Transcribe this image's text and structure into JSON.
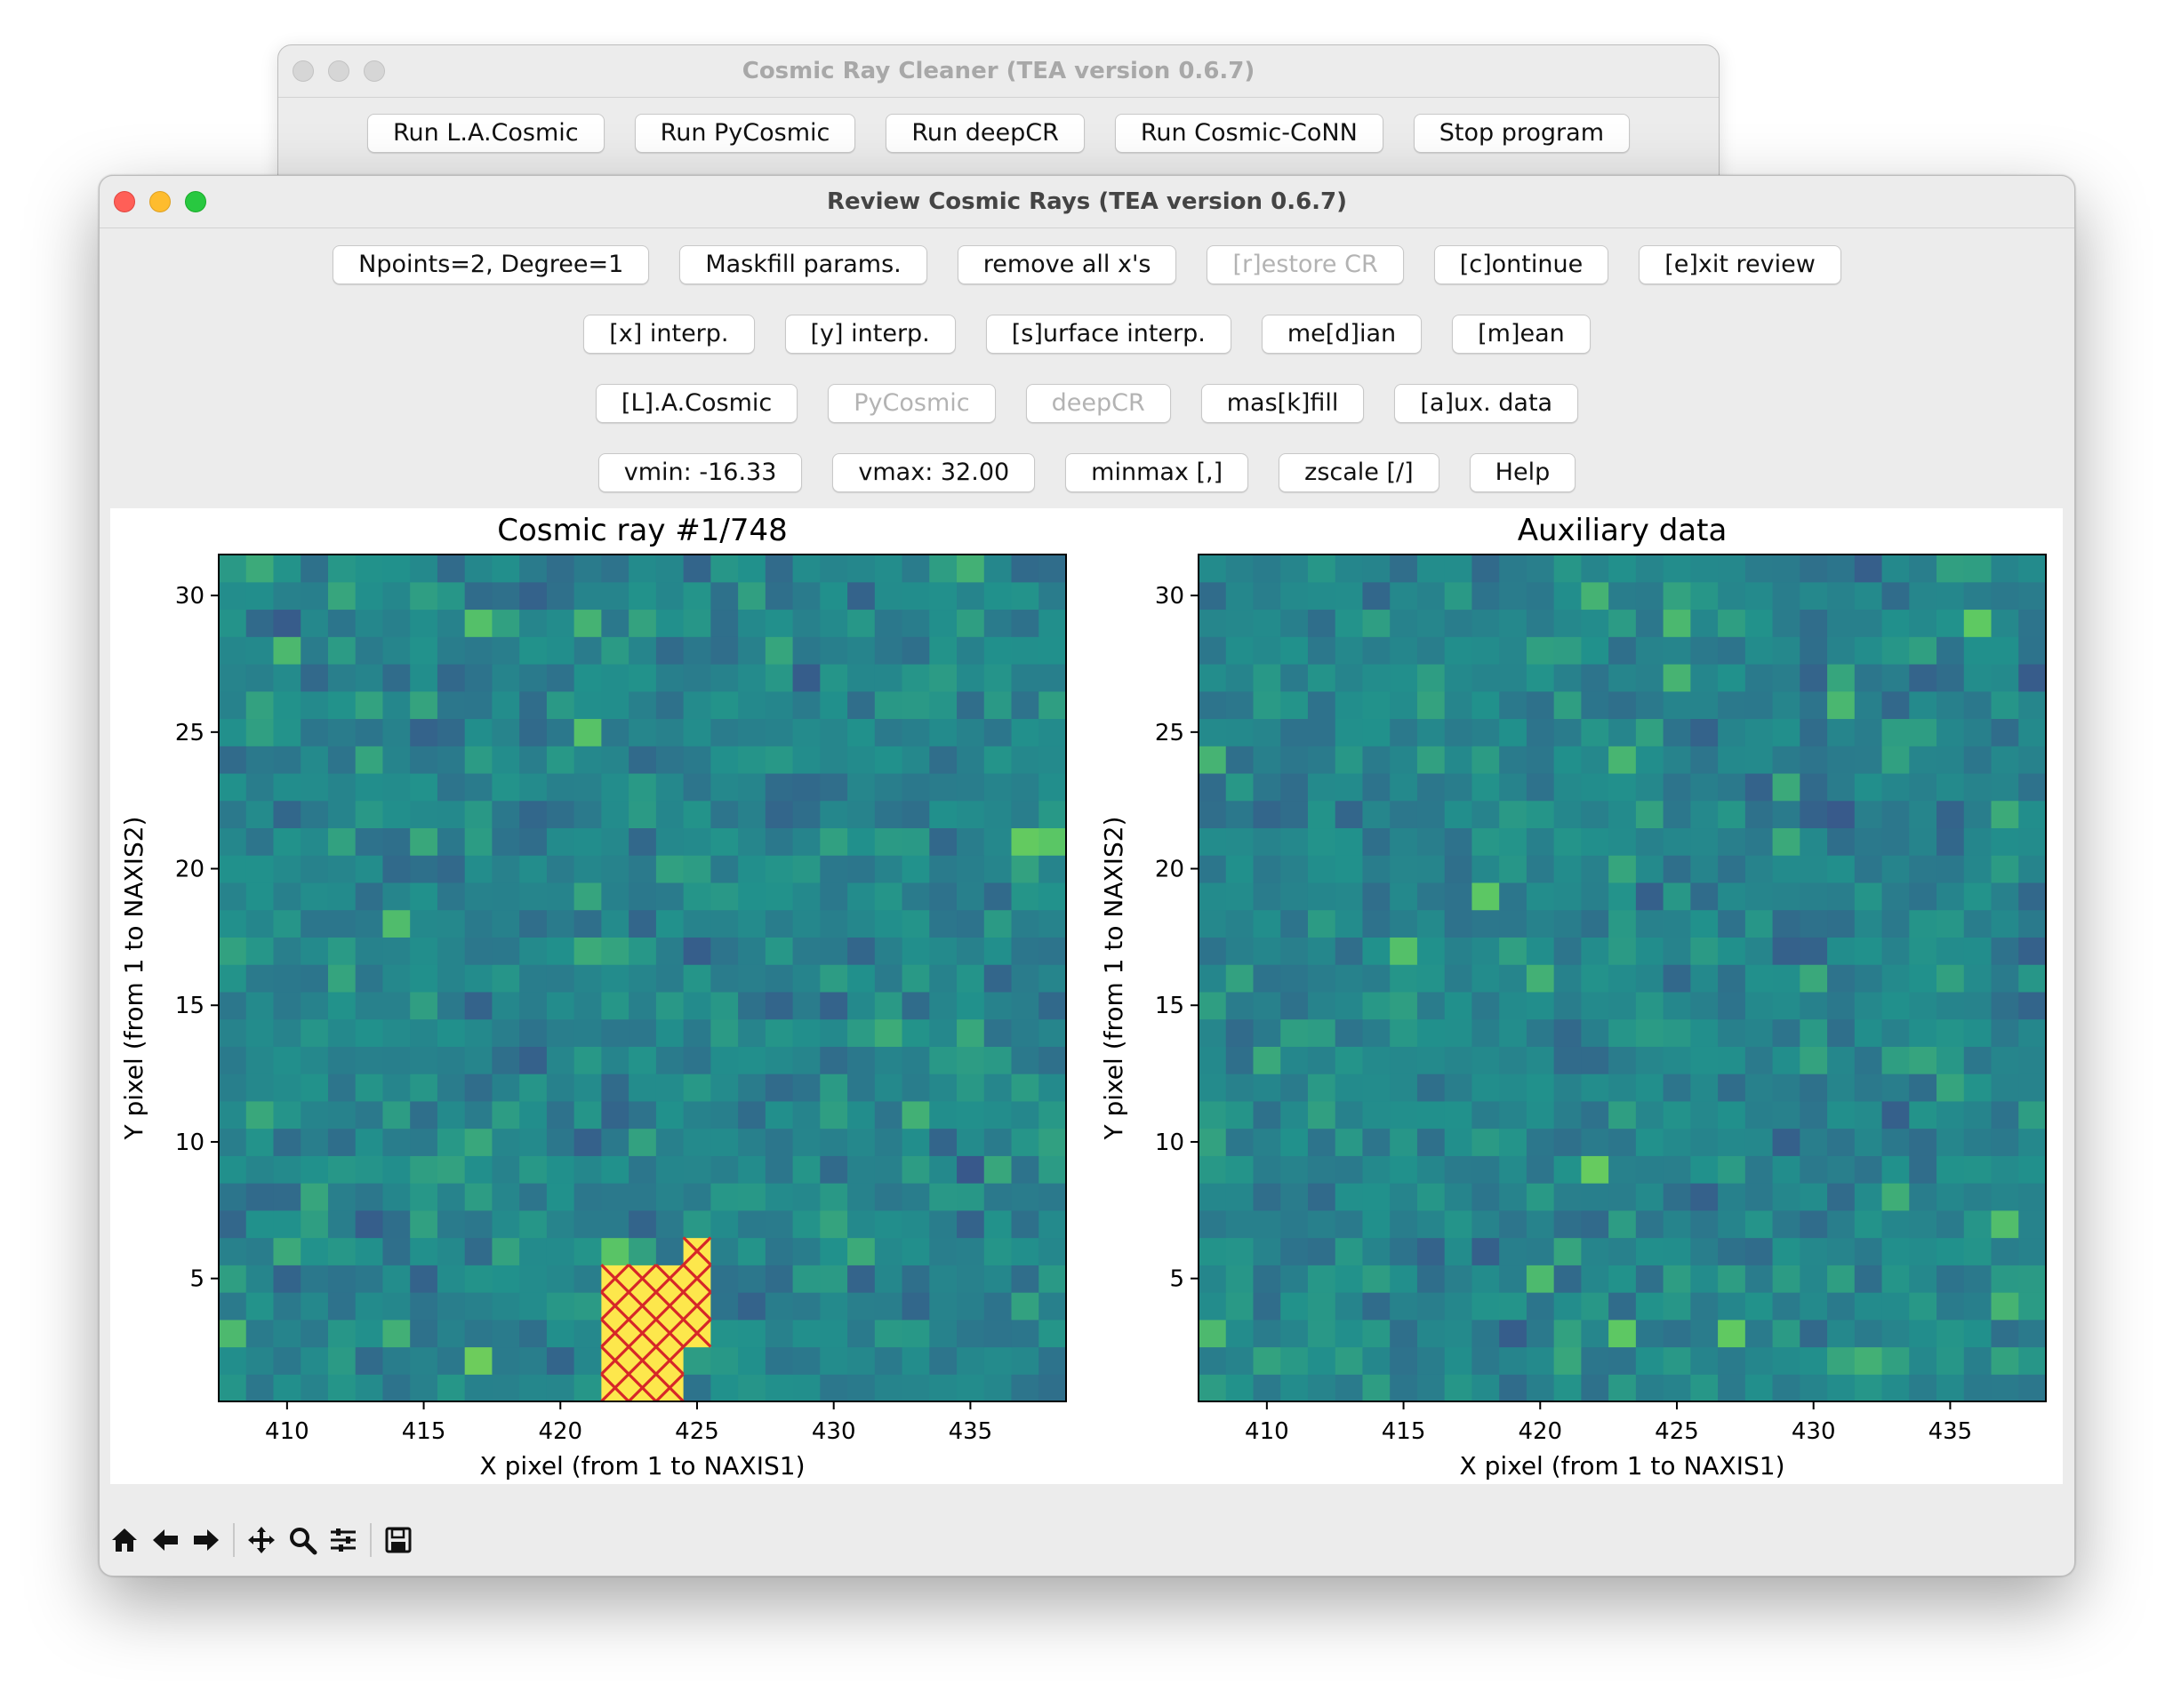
{
  "back_window": {
    "title": "Cosmic Ray Cleaner (TEA version 0.6.7)",
    "buttons": [
      "Run L.A.Cosmic",
      "Run PyCosmic",
      "Run deepCR",
      "Run Cosmic-CoNN",
      "Stop program"
    ]
  },
  "front_window": {
    "title": "Review Cosmic Rays (TEA version 0.6.7)",
    "rows": [
      [
        {
          "label": "Npoints=2, Degree=1",
          "enabled": true
        },
        {
          "label": "Maskfill params.",
          "enabled": true
        },
        {
          "label": "remove all x's",
          "enabled": true
        },
        {
          "label": "[r]estore CR",
          "enabled": false
        },
        {
          "label": "[c]ontinue",
          "enabled": true
        },
        {
          "label": "[e]xit review",
          "enabled": true
        }
      ],
      [
        {
          "label": "[x] interp.",
          "enabled": true
        },
        {
          "label": "[y] interp.",
          "enabled": true
        },
        {
          "label": "[s]urface interp.",
          "enabled": true
        },
        {
          "label": "me[d]ian",
          "enabled": true
        },
        {
          "label": "[m]ean",
          "enabled": true
        }
      ],
      [
        {
          "label": "[L].A.Cosmic",
          "enabled": true
        },
        {
          "label": "PyCosmic",
          "enabled": false
        },
        {
          "label": "deepCR",
          "enabled": false
        },
        {
          "label": "mas[k]fill",
          "enabled": true
        },
        {
          "label": "[a]ux. data",
          "enabled": true
        }
      ],
      [
        {
          "label": "vmin: -16.33",
          "enabled": true
        },
        {
          "label": "vmax: 32.00",
          "enabled": true
        },
        {
          "label": "minmax [,]",
          "enabled": true
        },
        {
          "label": "zscale [/]",
          "enabled": true
        },
        {
          "label": "Help",
          "enabled": true
        }
      ]
    ],
    "toolbar": [
      "home-icon",
      "back-arrow-icon",
      "forward-arrow-icon",
      "pan-icon",
      "zoom-icon",
      "configure-subplots-icon",
      "save-icon"
    ]
  },
  "chart_data": [
    {
      "type": "heatmap",
      "title": "Cosmic ray #1/748",
      "xlabel": "X pixel (from 1 to NAXIS1)",
      "ylabel": "Y pixel (from 1 to NAXIS2)",
      "xlim": [
        407.5,
        438.5
      ],
      "ylim": [
        0.5,
        31.5
      ],
      "xticks": [
        410,
        415,
        420,
        425,
        430,
        435
      ],
      "yticks": [
        5,
        10,
        15,
        20,
        25,
        30
      ],
      "colormap": "viridis",
      "vmin": -16.33,
      "vmax": 32.0,
      "cosmic_ray_pixels": [
        [
          425,
          6
        ],
        [
          422,
          5
        ],
        [
          423,
          5
        ],
        [
          424,
          5
        ],
        [
          425,
          5
        ],
        [
          422,
          4
        ],
        [
          423,
          4
        ],
        [
          424,
          4
        ],
        [
          425,
          4
        ],
        [
          422,
          3
        ],
        [
          423,
          3
        ],
        [
          424,
          3
        ],
        [
          425,
          3
        ],
        [
          422,
          2
        ],
        [
          423,
          2
        ],
        [
          424,
          2
        ],
        [
          422,
          1
        ],
        [
          423,
          1
        ],
        [
          424,
          1
        ]
      ],
      "cosmic_ray_color": "#fde74c",
      "marker_color": "#d62728"
    },
    {
      "type": "heatmap",
      "title": "Auxiliary data",
      "xlabel": "X pixel (from 1 to NAXIS1)",
      "ylabel": "Y pixel (from 1 to NAXIS2)",
      "xlim": [
        407.5,
        438.5
      ],
      "ylim": [
        0.5,
        31.5
      ],
      "xticks": [
        410,
        415,
        420,
        425,
        430,
        435
      ],
      "yticks": [
        5,
        10,
        15,
        20,
        25,
        30
      ],
      "colormap": "viridis"
    }
  ]
}
